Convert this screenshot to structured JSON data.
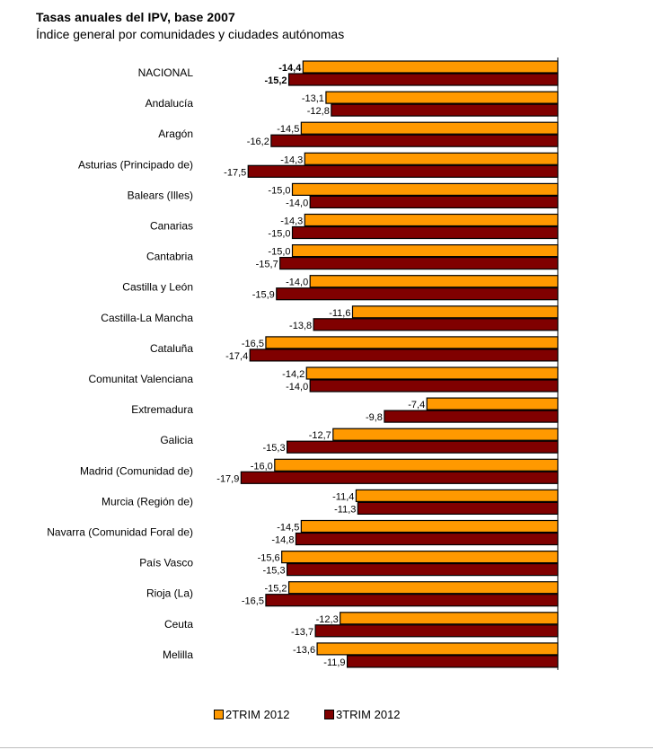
{
  "chart_data": {
    "type": "bar",
    "orientation": "horizontal",
    "title": "Tasas anuales del IPV, base 2007",
    "subtitle": "Índice general por comunidades y ciudades autónomas",
    "categories": [
      "NACIONAL",
      "Andalucía",
      "Aragón",
      "Asturias (Principado de)",
      "Balears (Illes)",
      "Canarias",
      "Cantabria",
      "Castilla y León",
      "Castilla-La Mancha",
      "Cataluña",
      "Comunitat Valenciana",
      "Extremadura",
      "Galicia",
      "Madrid (Comunidad de)",
      "Murcia (Región de)",
      "Navarra (Comunidad Foral de)",
      "País Vasco",
      "Rioja (La)",
      "Ceuta",
      "Melilla"
    ],
    "series": [
      {
        "name": "2TRIM 2012",
        "color": "#FF9900",
        "values": [
          -14.4,
          -13.1,
          -14.5,
          -14.3,
          -15.0,
          -14.3,
          -15.0,
          -14.0,
          -11.6,
          -16.5,
          -14.2,
          -7.4,
          -12.7,
          -16.0,
          -11.4,
          -14.5,
          -15.6,
          -15.2,
          -12.3,
          -13.6
        ],
        "labels": [
          "-14,4",
          "-13,1",
          "-14,5",
          "-14,3",
          "-15,0",
          "-14,3",
          "-15,0",
          "-14,0",
          "-11,6",
          "-16,5",
          "-14,2",
          "-7,4",
          "-12,7",
          "-16,0",
          "-11,4",
          "-14,5",
          "-15,6",
          "-15,2",
          "-12,3",
          "-13,6"
        ]
      },
      {
        "name": "3TRIM 2012",
        "color": "#800000",
        "values": [
          -15.2,
          -12.8,
          -16.2,
          -17.5,
          -14.0,
          -15.0,
          -15.7,
          -15.9,
          -13.8,
          -17.4,
          -14.0,
          -9.8,
          -15.3,
          -17.9,
          -11.3,
          -14.8,
          -15.3,
          -16.5,
          -13.7,
          -11.9
        ],
        "labels": [
          "-15,2",
          "-12,8",
          "-16,2",
          "-17,5",
          "-14,0",
          "-15,0",
          "-15,7",
          "-15,9",
          "-13,8",
          "-17,4",
          "-14,0",
          "-9,8",
          "-15,3",
          "-17,9",
          "-11,3",
          "-14,8",
          "-15,3",
          "-16,5",
          "-13,7",
          "-11,9"
        ]
      }
    ],
    "bold_categories": [
      "NACIONAL"
    ],
    "legend_position": "bottom",
    "grid": false
  }
}
